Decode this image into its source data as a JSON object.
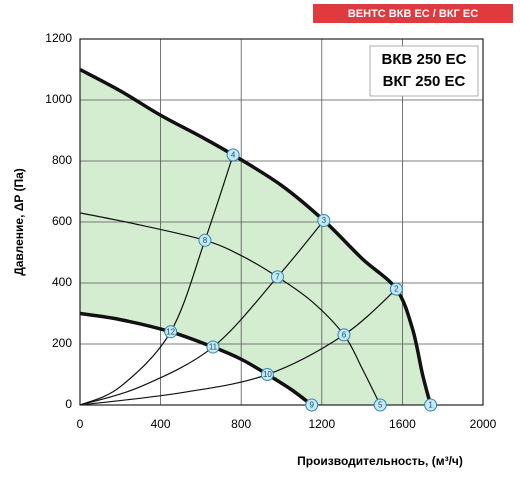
{
  "chart_data": {
    "type": "line",
    "banner": "ВЕНТС ВКВ ЕС / ВКГ ЕС",
    "model_lines": [
      "ВКВ 250 ЕС",
      "ВКГ 250 ЕС"
    ],
    "x_label": "Производительность, (м³/ч)",
    "y_label": "Давление, ΔP (Па)",
    "xlim": [
      0,
      2000
    ],
    "xticks": [
      0,
      400,
      800,
      1200,
      1600,
      2000
    ],
    "ylim": [
      0,
      1200
    ],
    "yticks": [
      0,
      200,
      400,
      600,
      800,
      1000,
      1200
    ],
    "grid": true,
    "fill": {
      "color": "#d4ecd0",
      "between": [
        0,
        2
      ]
    },
    "series": [
      {
        "color": "#111111",
        "line_width": 3.5,
        "x": [
          0,
          200,
          400,
          600,
          760,
          1000,
          1210,
          1400,
          1570,
          1650,
          1700,
          1740
        ],
        "values": [
          1100,
          1030,
          950,
          880,
          820,
          720,
          605,
          480,
          380,
          250,
          100,
          0
        ]
      },
      {
        "color": "#111111",
        "line_width": 1.2,
        "x": [
          0,
          300,
          620,
          800,
          980,
          1150,
          1310,
          1400,
          1490
        ],
        "values": [
          630,
          590,
          540,
          490,
          420,
          340,
          230,
          120,
          0
        ]
      },
      {
        "color": "#111111",
        "line_width": 3.5,
        "x": [
          0,
          200,
          450,
          660,
          800,
          930,
          1050,
          1150
        ],
        "values": [
          300,
          280,
          240,
          190,
          150,
          100,
          50,
          0
        ]
      },
      {
        "color": "#111111",
        "line_width": 1.2,
        "x": [
          0,
          200,
          450,
          620,
          760
        ],
        "values": [
          0,
          60,
          240,
          540,
          820
        ]
      },
      {
        "color": "#111111",
        "line_width": 1.2,
        "x": [
          0,
          300,
          660,
          980,
          1210
        ],
        "values": [
          0,
          60,
          190,
          420,
          605
        ]
      },
      {
        "color": "#111111",
        "line_width": 1.2,
        "x": [
          0,
          500,
          930,
          1310,
          1570
        ],
        "values": [
          0,
          40,
          100,
          230,
          380
        ]
      }
    ],
    "points": {
      "labels": [
        "1",
        "2",
        "3",
        "4",
        "5",
        "6",
        "7",
        "8",
        "9",
        "10",
        "11",
        "12"
      ],
      "x": [
        1740,
        1570,
        1210,
        760,
        1490,
        1310,
        980,
        620,
        1150,
        930,
        660,
        450
      ],
      "y": [
        0,
        380,
        605,
        820,
        0,
        230,
        420,
        540,
        0,
        100,
        190,
        240
      ],
      "fill": "#c5e8f5",
      "stroke": "#2f86b3"
    }
  }
}
